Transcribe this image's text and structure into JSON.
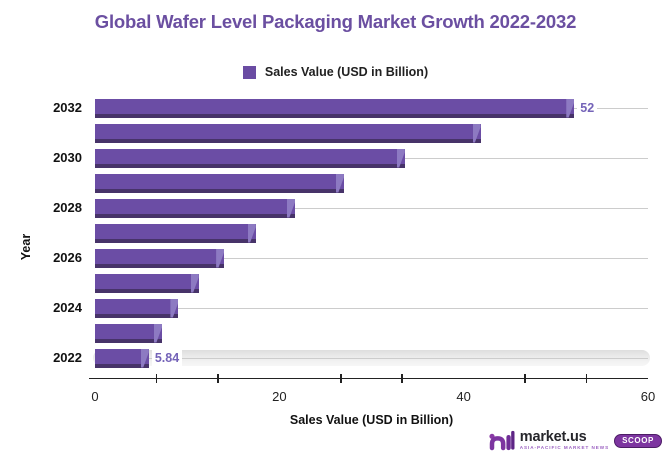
{
  "title": "Global Wafer Level Packaging Market Growth 2022-2032",
  "title_color": "#6b4fa1",
  "legend": {
    "label": "Sales Value (USD in Billion)",
    "swatch_color": "#6a4ca3"
  },
  "chart_data": {
    "type": "bar",
    "orientation": "horizontal",
    "title": "Global Wafer Level Packaging Market Growth 2022-2032",
    "xlabel": "Sales Value (USD in Billion)",
    "ylabel": "Year",
    "xlim": [
      0,
      60
    ],
    "x_ticks": [
      0,
      20,
      40,
      60
    ],
    "x_minor_ticks": [
      6.667,
      13.333,
      26.667,
      33.333,
      46.667,
      53.333
    ],
    "categories": [
      "2022",
      "2023",
      "2024",
      "2025",
      "2026",
      "2027",
      "2028",
      "2029",
      "2030",
      "2031",
      "2032"
    ],
    "values": [
      5.84,
      7.27,
      9.05,
      11.26,
      14.01,
      17.44,
      21.7,
      27.01,
      33.61,
      41.83,
      52
    ],
    "labeled_points": [
      {
        "category": "2032",
        "label": "52"
      },
      {
        "category": "2022",
        "label": "5.84"
      }
    ],
    "y_axis_labeled_categories": [
      "2032",
      "2030",
      "2028",
      "2026",
      "2024",
      "2022"
    ],
    "highlighted_category": "2022",
    "grid": "horizontal-on-labeled-rows",
    "legend_position": "top",
    "colors": {
      "bar_face": "#6b4da5",
      "bar_shadow": "#473369",
      "bar_cap": "#8d7ac2",
      "value_label": "#7463b8",
      "gridline": "#cccccc",
      "axis": "#222222"
    }
  },
  "footer": {
    "brand": "market.us",
    "tagline": "Asia-Pacific Market News",
    "badge": "SCOOP",
    "brand_color": "#7d35a0"
  }
}
